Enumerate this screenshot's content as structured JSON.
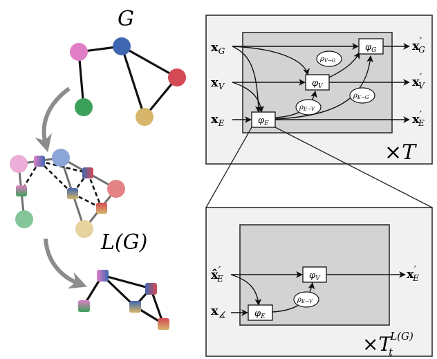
{
  "graph": {
    "title": "G",
    "node_colors": {
      "pink": "#e07fc6",
      "blue": "#3f66b0",
      "red": "#d44a55",
      "green": "#3aa05a",
      "yellow": "#d7b56a"
    }
  },
  "line_graph": {
    "title": "L(G)",
    "faded_colors": {
      "pink": "#ecadd8",
      "blue": "#8ba5d6",
      "red": "#e48385",
      "green": "#84c69a",
      "yellow": "#e6d3a0"
    }
  },
  "top_box": {
    "inputs": [
      "x",
      "x",
      "x"
    ],
    "input_subs": [
      "G",
      "V",
      "E"
    ],
    "outputs": [
      "x",
      "x",
      "x"
    ],
    "output_subs": [
      "G",
      "V",
      "E"
    ],
    "output_prime": "′",
    "phi_g": {
      "sym": "φ",
      "sub": "G"
    },
    "phi_v": {
      "sym": "φ",
      "sub": "V"
    },
    "phi_e": {
      "sym": "φ",
      "sub": "E"
    },
    "rho_vg": {
      "sym": "ρ",
      "sub": "V→G"
    },
    "rho_eg": {
      "sym": "ρ",
      "sub": "E→G"
    },
    "rho_ev": {
      "sym": "ρ",
      "sub": "E→V"
    },
    "repeat": {
      "times": "×",
      "sym": "T"
    }
  },
  "bottom_box": {
    "input_hat": {
      "sym": "x̂",
      "sub": "E",
      "prime": "′"
    },
    "input_angle": {
      "sym": "x",
      "sub": "∡"
    },
    "output": {
      "sym": "x",
      "sub": "E",
      "prime": "′"
    },
    "phi_v": {
      "sym": "φ",
      "sub": "V"
    },
    "phi_e": {
      "sym": "φ",
      "sub": "E"
    },
    "rho_ev": {
      "sym": "ρ",
      "sub": "E→V"
    },
    "repeat": {
      "times": "×",
      "sym": "T",
      "sub": "t",
      "sup": "L(G)"
    }
  },
  "colors": {
    "panel_outer": "#f0f1f0",
    "panel_inner": "#d3d3d3",
    "stroke": "#222222",
    "arrow_gray": "#8c8c8c"
  }
}
